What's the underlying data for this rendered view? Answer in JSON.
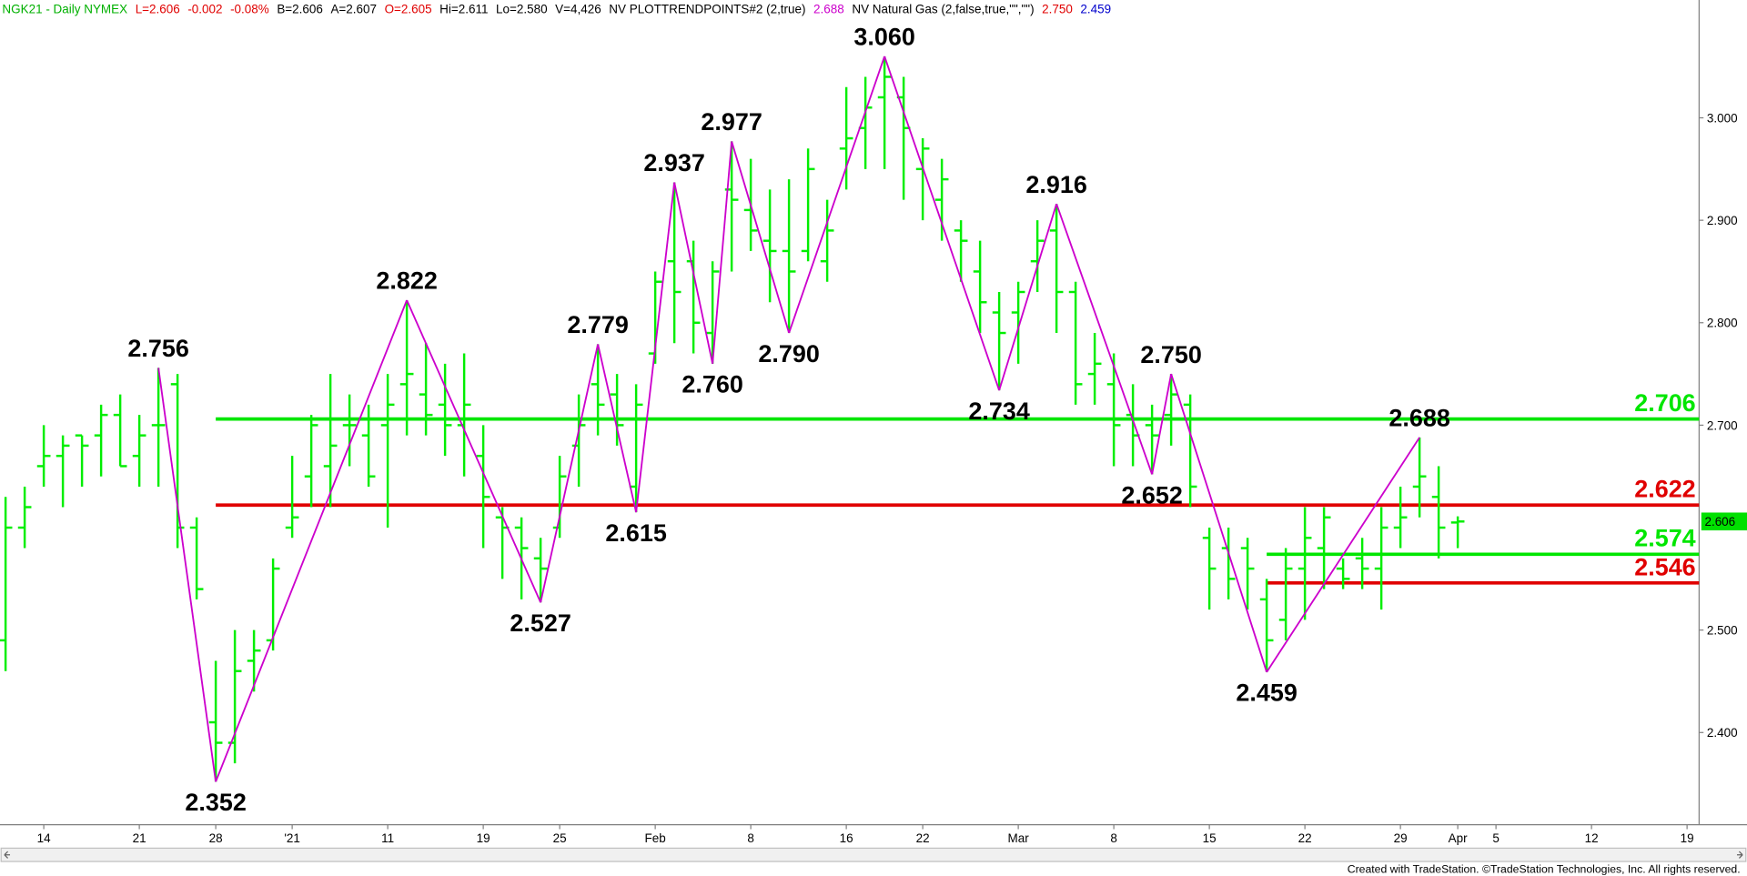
{
  "chart_data": {
    "type": "ohlc",
    "header": [
      {
        "text": "NGK21 - Daily NYMEX",
        "color": "#00b000"
      },
      {
        "text": "L=2.606",
        "color": "#e00000"
      },
      {
        "text": "-0.002",
        "color": "#e00000"
      },
      {
        "text": "-0.08%",
        "color": "#e00000"
      },
      {
        "text": "B=2.606",
        "color": "#000000"
      },
      {
        "text": "A=2.607",
        "color": "#000000"
      },
      {
        "text": "O=2.605",
        "color": "#e00000"
      },
      {
        "text": "Hi=2.611",
        "color": "#000000"
      },
      {
        "text": "Lo=2.580",
        "color": "#000000"
      },
      {
        "text": "V=4,426",
        "color": "#000000"
      },
      {
        "text": "NV PLOTTRENDPOINTS#2 (2,true)",
        "color": "#000000"
      },
      {
        "text": "2.688",
        "color": "#cc00cc"
      },
      {
        "text": "NV Natural Gas (2,false,true,\"\",\"\")",
        "color": "#000000"
      },
      {
        "text": "2.750",
        "color": "#e00000"
      },
      {
        "text": "2.459",
        "color": "#0000cc"
      }
    ],
    "footer": "Created with TradeStation. ©TradeStation Technologies, Inc. All rights reserved.",
    "categories": [
      null,
      null,
      "14",
      null,
      null,
      null,
      null,
      "21",
      null,
      null,
      null,
      "28",
      null,
      null,
      null,
      "'21",
      null,
      null,
      null,
      null,
      "11",
      null,
      null,
      null,
      null,
      "19",
      null,
      null,
      null,
      "25",
      null,
      null,
      null,
      null,
      "Feb",
      null,
      null,
      null,
      null,
      "8",
      null,
      null,
      null,
      null,
      "16",
      null,
      null,
      null,
      "22",
      null,
      null,
      null,
      null,
      "Mar",
      null,
      null,
      null,
      null,
      "8",
      null,
      null,
      null,
      null,
      "15",
      null,
      null,
      null,
      null,
      "22",
      null,
      null,
      null,
      null,
      "29",
      null,
      null,
      "Apr",
      null,
      "5",
      null,
      null,
      null,
      null,
      "12",
      null,
      null,
      null,
      null,
      "19"
    ],
    "bar_color": "#00ee00",
    "open": [
      2.49,
      2.6,
      2.66,
      2.67,
      2.69,
      2.69,
      2.71,
      2.67,
      2.7,
      2.74,
      2.6,
      2.41,
      2.39,
      2.47,
      2.49,
      2.6,
      2.65,
      2.66,
      2.7,
      2.69,
      2.7,
      2.74,
      2.73,
      2.72,
      2.7,
      2.67,
      2.61,
      2.6,
      2.57,
      2.6,
      2.68,
      2.74,
      2.73,
      2.64,
      2.77,
      2.86,
      2.86,
      2.79,
      2.93,
      2.91,
      2.88,
      2.87,
      2.87,
      2.86,
      2.97,
      2.99,
      3.02,
      3.02,
      2.95,
      2.92,
      2.89,
      2.85,
      2.81,
      2.81,
      2.86,
      2.89,
      2.83,
      2.75,
      2.74,
      2.71,
      2.7,
      2.71,
      2.72,
      2.59,
      2.58,
      2.58,
      2.53,
      2.51,
      2.56,
      2.58,
      2.56,
      2.57,
      2.56,
      2.6,
      2.64,
      2.63,
      2.605,
      null,
      null,
      null,
      null,
      null,
      null,
      null,
      null,
      null,
      null,
      null,
      null
    ],
    "high": [
      2.63,
      2.64,
      2.7,
      2.69,
      2.69,
      2.72,
      2.73,
      2.71,
      2.756,
      2.75,
      2.61,
      2.47,
      2.5,
      2.5,
      2.57,
      2.67,
      2.71,
      2.75,
      2.73,
      2.72,
      2.75,
      2.822,
      2.78,
      2.76,
      2.77,
      2.7,
      2.62,
      2.61,
      2.59,
      2.67,
      2.73,
      2.779,
      2.75,
      2.74,
      2.85,
      2.937,
      2.88,
      2.86,
      2.977,
      2.96,
      2.93,
      2.94,
      2.97,
      2.92,
      3.03,
      3.04,
      3.06,
      3.04,
      2.98,
      2.96,
      2.9,
      2.88,
      2.83,
      2.84,
      2.9,
      2.916,
      2.84,
      2.79,
      2.77,
      2.74,
      2.72,
      2.75,
      2.73,
      2.6,
      2.6,
      2.59,
      2.55,
      2.58,
      2.62,
      2.62,
      2.57,
      2.59,
      2.62,
      2.64,
      2.688,
      2.66,
      2.611,
      null,
      null,
      null,
      null,
      null,
      null,
      null,
      null,
      null,
      null,
      null,
      null
    ],
    "low": [
      2.46,
      2.58,
      2.64,
      2.62,
      2.64,
      2.65,
      2.66,
      2.64,
      2.64,
      2.58,
      2.53,
      2.352,
      2.37,
      2.44,
      2.48,
      2.59,
      2.62,
      2.62,
      2.66,
      2.64,
      2.6,
      2.69,
      2.69,
      2.67,
      2.65,
      2.58,
      2.55,
      2.53,
      2.527,
      2.59,
      2.64,
      2.69,
      2.68,
      2.615,
      2.76,
      2.78,
      2.77,
      2.76,
      2.85,
      2.87,
      2.82,
      2.79,
      2.86,
      2.84,
      2.93,
      2.95,
      2.95,
      2.92,
      2.9,
      2.88,
      2.84,
      2.79,
      2.734,
      2.76,
      2.83,
      2.79,
      2.72,
      2.72,
      2.66,
      2.66,
      2.652,
      2.68,
      2.62,
      2.52,
      2.53,
      2.52,
      2.459,
      2.49,
      2.51,
      2.54,
      2.54,
      2.54,
      2.52,
      2.58,
      2.61,
      2.57,
      2.58,
      null,
      null,
      null,
      null,
      null,
      null,
      null,
      null,
      null,
      null,
      null,
      null
    ],
    "close": [
      2.6,
      2.62,
      2.67,
      2.68,
      2.68,
      2.71,
      2.66,
      2.69,
      2.7,
      2.6,
      2.54,
      2.39,
      2.46,
      2.48,
      2.56,
      2.61,
      2.7,
      2.68,
      2.7,
      2.65,
      2.72,
      2.75,
      2.71,
      2.7,
      2.72,
      2.63,
      2.6,
      2.58,
      2.56,
      2.65,
      2.7,
      2.72,
      2.7,
      2.72,
      2.84,
      2.83,
      2.8,
      2.85,
      2.92,
      2.89,
      2.87,
      2.85,
      2.95,
      2.89,
      2.98,
      3.01,
      3.04,
      2.99,
      2.97,
      2.94,
      2.88,
      2.82,
      2.79,
      2.83,
      2.88,
      2.83,
      2.74,
      2.76,
      2.7,
      2.69,
      2.69,
      2.73,
      2.64,
      2.56,
      2.55,
      2.56,
      2.49,
      2.56,
      2.59,
      2.61,
      2.55,
      2.56,
      2.6,
      2.61,
      2.65,
      2.6,
      2.606,
      null,
      null,
      null,
      null,
      null,
      null,
      null,
      null,
      null,
      null,
      null,
      null
    ],
    "pivots": {
      "color": "#cc00cc",
      "values": [
        null,
        null,
        null,
        null,
        null,
        null,
        null,
        null,
        2.756,
        null,
        null,
        2.352,
        null,
        null,
        null,
        null,
        null,
        null,
        null,
        null,
        null,
        2.822,
        null,
        null,
        null,
        null,
        null,
        null,
        2.527,
        null,
        null,
        2.779,
        null,
        2.615,
        null,
        2.937,
        null,
        2.76,
        2.977,
        null,
        null,
        2.79,
        null,
        null,
        null,
        null,
        3.06,
        null,
        null,
        null,
        null,
        null,
        2.734,
        null,
        null,
        2.916,
        null,
        null,
        null,
        null,
        2.652,
        2.75,
        null,
        null,
        null,
        null,
        2.459,
        null,
        null,
        null,
        null,
        null,
        null,
        null,
        2.688,
        null,
        null,
        null,
        null,
        null,
        null,
        null,
        null,
        null,
        null,
        null,
        null,
        null,
        null
      ],
      "value_labels": [
        null,
        null,
        null,
        null,
        null,
        null,
        null,
        null,
        "2.756",
        null,
        null,
        "2.352",
        null,
        null,
        null,
        null,
        null,
        null,
        null,
        null,
        null,
        "2.822",
        null,
        null,
        null,
        null,
        null,
        null,
        "2.527",
        null,
        null,
        "2.779",
        null,
        "2.615",
        null,
        "2.937",
        null,
        "2.760",
        "2.977",
        null,
        null,
        "2.790",
        null,
        null,
        null,
        null,
        "3.060",
        null,
        null,
        null,
        null,
        null,
        "2.734",
        null,
        null,
        "2.916",
        null,
        null,
        null,
        null,
        "2.652",
        "2.750",
        null,
        null,
        null,
        null,
        "2.459",
        null,
        null,
        null,
        null,
        null,
        null,
        null,
        "2.688",
        null,
        null,
        null,
        null,
        null,
        null,
        null,
        null,
        null,
        null,
        null,
        null,
        null,
        null
      ]
    },
    "levels": [
      {
        "value": 2.706,
        "color": "#00e600",
        "from": 11
      },
      {
        "value": 2.622,
        "color": "#e00000",
        "from": 11
      },
      {
        "value": 2.574,
        "color": "#00e600",
        "from": 66
      },
      {
        "value": 2.546,
        "color": "#e00000",
        "from": 66
      }
    ],
    "last": {
      "value": 2.606,
      "color": "#00e000"
    },
    "ylim": [
      2.31,
      3.115
    ],
    "yticks": [
      {
        "value": 2.4,
        "label": "2.400"
      },
      {
        "value": 2.5,
        "label": "2.500"
      },
      {
        "value": 2.7,
        "label": "2.700"
      },
      {
        "value": 2.8,
        "label": "2.800"
      },
      {
        "value": 2.9,
        "label": "2.900"
      },
      {
        "value": 3,
        "label": "3.000"
      }
    ]
  }
}
